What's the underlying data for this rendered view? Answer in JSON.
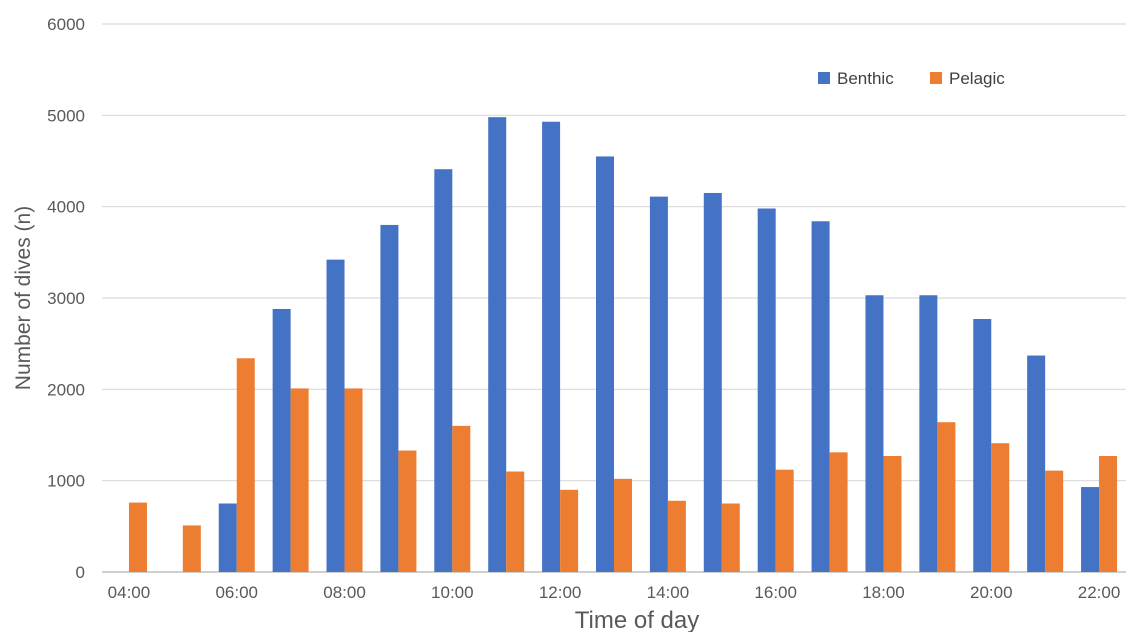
{
  "chart_data": {
    "type": "bar",
    "title": "",
    "xlabel": "Time of day",
    "ylabel": "Number of dives (n)",
    "ylim": [
      0,
      6000
    ],
    "yticks": [
      0,
      1000,
      2000,
      3000,
      4000,
      5000,
      6000
    ],
    "grid": true,
    "legend_position": "top-right",
    "x_tick_labels": [
      "04:00",
      "06:00",
      "08:00",
      "10:00",
      "12:00",
      "14:00",
      "16:00",
      "18:00",
      "20:00",
      "22:00"
    ],
    "categories": [
      "04:00",
      "05:00",
      "06:00",
      "07:00",
      "08:00",
      "09:00",
      "10:00",
      "11:00",
      "12:00",
      "13:00",
      "14:00",
      "15:00",
      "16:00",
      "17:00",
      "18:00",
      "19:00",
      "20:00",
      "21:00",
      "22:00"
    ],
    "series": [
      {
        "name": "Benthic",
        "color": "#4472C4",
        "values": [
          0,
          0,
          750,
          2880,
          3420,
          3800,
          4410,
          4980,
          4930,
          4550,
          4110,
          4150,
          3980,
          3840,
          3030,
          3030,
          2770,
          2370,
          930
        ]
      },
      {
        "name": "Pelagic",
        "color": "#ED7D31",
        "values": [
          760,
          510,
          2340,
          2010,
          2010,
          1330,
          1600,
          1100,
          900,
          1020,
          780,
          750,
          1120,
          1310,
          1270,
          1640,
          1410,
          1110,
          1270
        ]
      }
    ]
  }
}
